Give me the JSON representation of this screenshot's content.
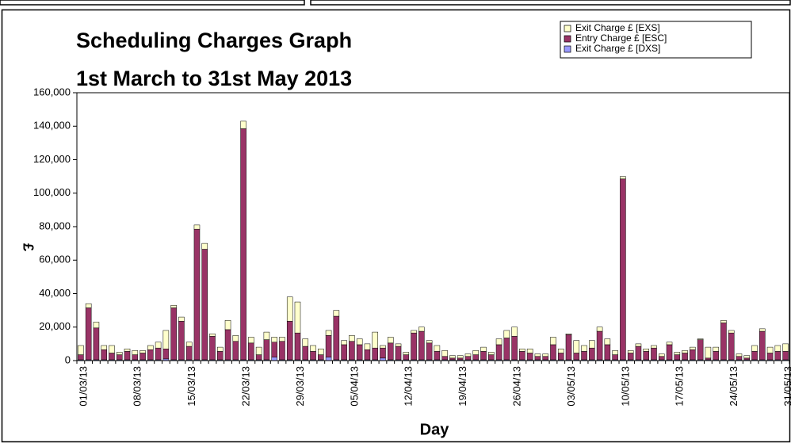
{
  "chart_data": {
    "type": "stacked_bar",
    "title": "Scheduling Charges Graph",
    "subtitle": "1st March to 31st May 2013",
    "x_label": "Day",
    "y_label": "£",
    "categories": [
      "01/03/13",
      null,
      null,
      null,
      null,
      null,
      null,
      "08/03/13",
      null,
      null,
      null,
      null,
      null,
      null,
      "15/03/13",
      null,
      null,
      null,
      null,
      null,
      null,
      "22/03/13",
      null,
      null,
      null,
      null,
      null,
      null,
      "29/03/13",
      null,
      null,
      null,
      null,
      null,
      null,
      "05/04/13",
      null,
      null,
      null,
      null,
      null,
      null,
      "12/04/13",
      null,
      null,
      null,
      null,
      null,
      null,
      "19/04/13",
      null,
      null,
      null,
      null,
      null,
      null,
      "26/04/13",
      null,
      null,
      null,
      null,
      null,
      null,
      "03/05/13",
      null,
      null,
      null,
      null,
      null,
      null,
      "10/05/13",
      null,
      null,
      null,
      null,
      null,
      null,
      "17/05/13",
      null,
      null,
      null,
      null,
      null,
      null,
      "24/05/13",
      null,
      null,
      null,
      null,
      null,
      null,
      "31/05/13"
    ],
    "series": [
      {
        "name": "Exit Charge £ [DXS]",
        "color": "#9999ff",
        "values": [
          500,
          500,
          500,
          500,
          500,
          500,
          500,
          500,
          500,
          500,
          500,
          1000,
          500,
          500,
          500,
          500,
          500,
          500,
          500,
          500,
          500,
          500,
          500,
          500,
          500,
          2000,
          500,
          500,
          500,
          500,
          500,
          500,
          2000,
          500,
          500,
          500,
          500,
          500,
          500,
          1500,
          500,
          500,
          500,
          500,
          500,
          500,
          500,
          500,
          500,
          500,
          500,
          500,
          500,
          500,
          500,
          500,
          500,
          500,
          500,
          500,
          500,
          500,
          500,
          500,
          500,
          500,
          500,
          500,
          500,
          500,
          500,
          500,
          500,
          500,
          500,
          500,
          500,
          500,
          500,
          500,
          500,
          500,
          500,
          500,
          500,
          500,
          500,
          500,
          500,
          500,
          500,
          500
        ]
      },
      {
        "name": "Entry Charge £ [ESC]",
        "color": "#993366",
        "values": [
          3000,
          31000,
          19000,
          6000,
          4000,
          3000,
          5000,
          3000,
          4000,
          6000,
          7000,
          6000,
          31000,
          23000,
          8000,
          78000,
          66000,
          14000,
          5000,
          18000,
          11000,
          138000,
          10000,
          3000,
          12000,
          9000,
          11000,
          23000,
          16000,
          8000,
          5000,
          3000,
          13000,
          26000,
          9000,
          11000,
          9000,
          6000,
          7000,
          6000,
          10000,
          8000,
          3000,
          16000,
          17000,
          10000,
          5000,
          2000,
          1000,
          1000,
          2000,
          3000,
          5000,
          3000,
          9000,
          13000,
          14000,
          5000,
          4000,
          2000,
          2000,
          9000,
          4000,
          15000,
          4000,
          5000,
          7000,
          17000,
          9000,
          3000,
          108000,
          4000,
          8000,
          5000,
          7000,
          2000,
          9000,
          3000,
          4000,
          6000,
          12000,
          1000,
          5000,
          22000,
          16000,
          2000,
          1000,
          5000,
          17000,
          4000,
          5000,
          5000
        ]
      },
      {
        "name": "Exit Charge £ [EXS]",
        "color": "#ffffcc",
        "values": [
          5500,
          2500,
          3500,
          2500,
          4500,
          1500,
          1500,
          2500,
          1500,
          2500,
          3500,
          11000,
          1500,
          2500,
          2500,
          2500,
          3500,
          1500,
          2500,
          5500,
          3500,
          4500,
          3500,
          4500,
          4500,
          3000,
          2500,
          14500,
          18500,
          4500,
          3500,
          3500,
          3000,
          3500,
          2500,
          3500,
          3500,
          3500,
          9500,
          1500,
          3500,
          1500,
          1500,
          1500,
          2500,
          1500,
          3500,
          3500,
          1500,
          1500,
          1500,
          2500,
          2500,
          1500,
          3500,
          4500,
          5500,
          1500,
          2500,
          1500,
          1500,
          4500,
          2500,
          500,
          7500,
          3500,
          4500,
          2500,
          3500,
          2500,
          1500,
          1500,
          1500,
          1500,
          1500,
          1500,
          1500,
          1500,
          1500,
          1500,
          500,
          6500,
          2500,
          1500,
          1500,
          1500,
          1500,
          3500,
          1500,
          3500,
          3500,
          4500
        ]
      }
    ],
    "ylim": [
      0,
      160000
    ],
    "yticks": [
      0,
      {
        "value": 20000,
        "label": "20,000"
      },
      {
        "value": 40000,
        "label": "40,000"
      },
      {
        "value": 60000,
        "label": "60,000"
      },
      {
        "value": 80000,
        "label": "80,000"
      },
      {
        "value": 100000,
        "label": "100,000"
      },
      {
        "value": 120000,
        "label": "120,000"
      },
      {
        "value": 140000,
        "label": "140,000"
      },
      {
        "value": 160000,
        "label": "160,000"
      }
    ],
    "grid": false,
    "legend": "top-right"
  }
}
